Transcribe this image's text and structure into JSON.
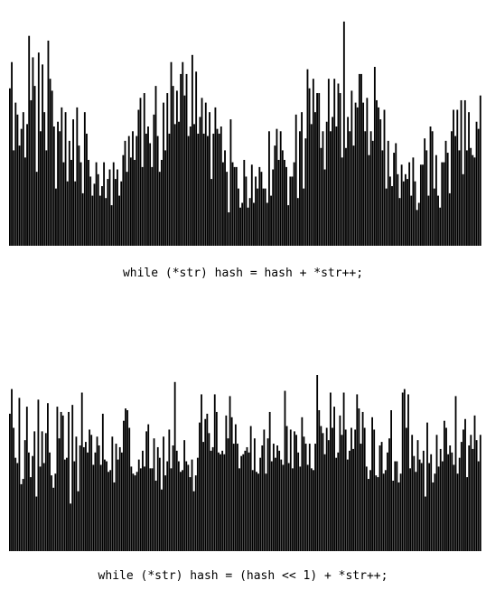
{
  "chart_data": [
    {
      "type": "bar",
      "title": "while (*str) hash = hash + *str++;",
      "xlabel": "",
      "ylabel": "",
      "ylim": [
        0,
        100
      ],
      "grid": false,
      "legend": "none",
      "bar_color": "#000000",
      "values": [
        66,
        77,
        40,
        60,
        55,
        42,
        49,
        56,
        37,
        51,
        88,
        61,
        79,
        67,
        31,
        81,
        48,
        76,
        56,
        40,
        86,
        70,
        65,
        50,
        24,
        52,
        48,
        58,
        35,
        56,
        27,
        44,
        36,
        53,
        27,
        58,
        42,
        35,
        22,
        56,
        47,
        36,
        29,
        21,
        26,
        35,
        30,
        21,
        25,
        35,
        20,
        28,
        32,
        17,
        35,
        28,
        32,
        21,
        27,
        38,
        44,
        31,
        46,
        37,
        48,
        36,
        46,
        57,
        62,
        33,
        64,
        47,
        50,
        43,
        33,
        55,
        67,
        46,
        31,
        36,
        60,
        40,
        64,
        47,
        77,
        67,
        51,
        65,
        52,
        72,
        77,
        63,
        72,
        46,
        50,
        80,
        51,
        73,
        47,
        54,
        62,
        47,
        60,
        46,
        56,
        28,
        47,
        58,
        49,
        47,
        50,
        35,
        40,
        31,
        14,
        53,
        35,
        33,
        33,
        24,
        16,
        18,
        36,
        29,
        16,
        20,
        34,
        18,
        29,
        24,
        33,
        31,
        24,
        24,
        18,
        48,
        21,
        32,
        42,
        49,
        36,
        48,
        40,
        36,
        33,
        17,
        29,
        29,
        35,
        55,
        20,
        48,
        56,
        24,
        45,
        74,
        66,
        51,
        70,
        56,
        64,
        64,
        41,
        48,
        32,
        52,
        70,
        48,
        54,
        70,
        50,
        68,
        64,
        37,
        94,
        41,
        54,
        48,
        65,
        42,
        60,
        58,
        72,
        72,
        60,
        48,
        62,
        38,
        48,
        44,
        75,
        61,
        58,
        53,
        40,
        57,
        24,
        44,
        29,
        25,
        39,
        43,
        30,
        20,
        34,
        27,
        30,
        28,
        35,
        21,
        37,
        27,
        15,
        18,
        34,
        34,
        45,
        40,
        21,
        50,
        48,
        24,
        38,
        21,
        16,
        35,
        35,
        44,
        39,
        22,
        48,
        57,
        46,
        57,
        40,
        61,
        30,
        61,
        40,
        56,
        41,
        38,
        37,
        52,
        49,
        63
      ]
    },
    {
      "type": "bar",
      "title": "while (*str) hash = (hash << 1) + *str++;",
      "xlabel": "",
      "ylabel": "",
      "ylim": [
        0,
        100
      ],
      "grid": false,
      "legend": "none",
      "bar_color": "#000000",
      "values": [
        78,
        92,
        70,
        53,
        50,
        87,
        38,
        41,
        63,
        82,
        56,
        42,
        54,
        68,
        31,
        86,
        48,
        68,
        50,
        67,
        84,
        56,
        43,
        36,
        44,
        82,
        64,
        79,
        77,
        52,
        53,
        79,
        27,
        83,
        51,
        65,
        34,
        60,
        90,
        59,
        62,
        56,
        69,
        66,
        49,
        56,
        65,
        60,
        49,
        78,
        52,
        51,
        45,
        46,
        65,
        39,
        61,
        52,
        59,
        56,
        74,
        81,
        80,
        70,
        48,
        44,
        43,
        45,
        52,
        47,
        57,
        48,
        68,
        72,
        47,
        47,
        64,
        40,
        59,
        53,
        35,
        65,
        43,
        51,
        69,
        47,
        60,
        96,
        57,
        51,
        45,
        46,
        63,
        51,
        49,
        42,
        52,
        34,
        43,
        53,
        73,
        89,
        62,
        75,
        78,
        67,
        57,
        59,
        89,
        79,
        56,
        55,
        57,
        55,
        77,
        64,
        88,
        76,
        61,
        72,
        61,
        47,
        54,
        55,
        57,
        59,
        56,
        71,
        46,
        64,
        45,
        44,
        53,
        60,
        69,
        44,
        64,
        79,
        51,
        61,
        53,
        60,
        57,
        52,
        49,
        91,
        71,
        50,
        69,
        47,
        68,
        66,
        56,
        48,
        76,
        65,
        61,
        49,
        61,
        47,
        46,
        61,
        101,
        80,
        71,
        67,
        55,
        70,
        63,
        90,
        70,
        82,
        53,
        56,
        77,
        66,
        90,
        69,
        52,
        57,
        70,
        58,
        69,
        89,
        81,
        61,
        79,
        70,
        48,
        41,
        46,
        76,
        69,
        43,
        42,
        60,
        62,
        44,
        46,
        56,
        64,
        80,
        40,
        51,
        51,
        39,
        44,
        90,
        92,
        70,
        89,
        47,
        66,
        54,
        45,
        63,
        52,
        50,
        57,
        31,
        73,
        50,
        55,
        39,
        44,
        66,
        48,
        58,
        51,
        74,
        70,
        55,
        60,
        56,
        49,
        88,
        44,
        53,
        62,
        69,
        75,
        42,
        60,
        66,
        58,
        77,
        63,
        51,
        66
      ]
    }
  ]
}
